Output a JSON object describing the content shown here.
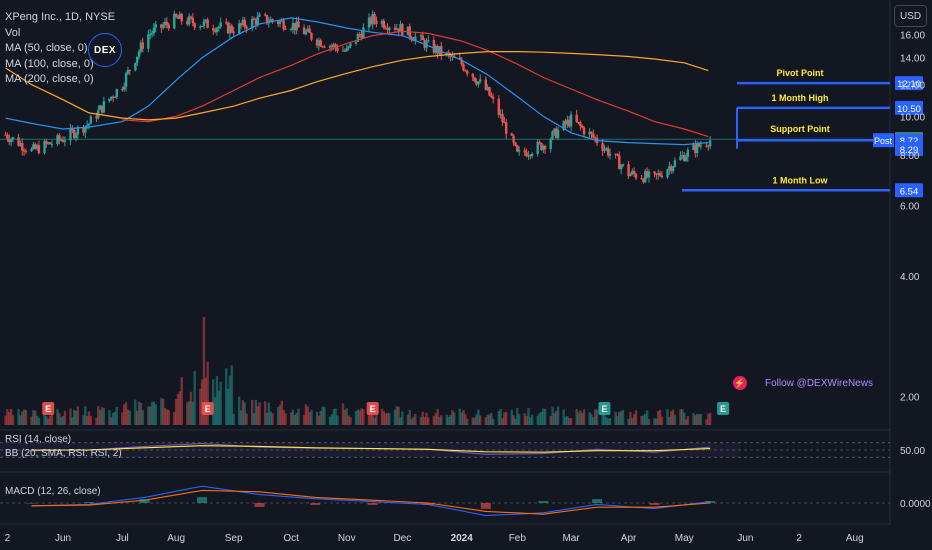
{
  "legend": {
    "symbol": "XPeng Inc., 1D, NYSE",
    "vol": "Vol",
    "ma50": "MA (50, close, 0)",
    "ma100": "MA (100, close, 0)",
    "ma200": "MA (200, close, 0)"
  },
  "currency_button": "USD",
  "watermark_logo": "DEX",
  "rsi_legend": "RSI (14, close)",
  "bb_legend": "BB (20, SMA, RSI: RSI, 2)",
  "macd_legend": "MACD (12, 26, close)",
  "follow_text": "Follow @DEXWireNews",
  "colors": {
    "background": "#131722",
    "up": "#26a69a",
    "down": "#ef5350",
    "ma50": "#2196f3",
    "ma100": "#e53935",
    "ma200": "#ffa726",
    "level_line": "#2962ff",
    "level_label": "#ffeb3b",
    "support_badge": "#4caf50",
    "rsi_line": "#7e57c2"
  },
  "chart_data": [
    {
      "type": "line",
      "title": "XPeng Inc., 1D, NYSE",
      "ylabel": "USD",
      "y_scale": "log",
      "y_ticks": [
        16.0,
        14.0,
        12.0,
        10.0,
        8.0,
        6.0,
        4.0,
        2.0
      ],
      "ylim": [
        1.7,
        19.5
      ],
      "x_ticks": [
        "2",
        "Jun",
        "Jul",
        "Aug",
        "Sep",
        "Oct",
        "Nov",
        "Dec",
        "2024",
        "Feb",
        "Mar",
        "Apr",
        "May",
        "Jun",
        "2",
        "Aug"
      ],
      "x": [
        "2023-05-01",
        "2023-05-15",
        "2023-06-01",
        "2023-06-15",
        "2023-07-03",
        "2023-07-17",
        "2023-08-01",
        "2023-08-15",
        "2023-09-01",
        "2023-09-15",
        "2023-10-02",
        "2023-10-16",
        "2023-11-01",
        "2023-11-15",
        "2023-12-01",
        "2023-12-15",
        "2024-01-02",
        "2024-01-16",
        "2024-02-01",
        "2024-02-15",
        "2024-03-01",
        "2024-03-15",
        "2024-04-01",
        "2024-04-15",
        "2024-05-01",
        "2024-05-14"
      ],
      "series": [
        {
          "name": "MA (50, close, 0)",
          "values": [
            9.9,
            9.6,
            9.3,
            9.4,
            9.7,
            10.6,
            12.3,
            14.0,
            15.8,
            17.0,
            17.6,
            17.2,
            16.6,
            16.2,
            15.9,
            15.0,
            13.8,
            12.7,
            11.2,
            10.0,
            9.1,
            8.7,
            8.6,
            8.55,
            8.5,
            8.6
          ]
        },
        {
          "name": "MA (100, close, 0)",
          "values": [
            null,
            null,
            null,
            null,
            9.8,
            9.7,
            10.0,
            10.6,
            11.6,
            12.5,
            13.4,
            14.3,
            15.2,
            15.9,
            16.3,
            16.1,
            15.4,
            14.6,
            13.5,
            12.5,
            11.7,
            11.0,
            10.3,
            9.7,
            9.3,
            8.9
          ]
        },
        {
          "name": "MA (200, close, 0)",
          "values": [
            13.2,
            12.0,
            11.0,
            10.2,
            9.9,
            9.8,
            9.9,
            10.2,
            10.6,
            11.1,
            11.6,
            12.2,
            12.8,
            13.3,
            13.8,
            14.1,
            14.35,
            14.5,
            14.5,
            14.45,
            14.35,
            14.25,
            14.1,
            13.9,
            13.6,
            13.0
          ]
        }
      ],
      "price_summary": {
        "first_close": 9.0,
        "high": 19.0,
        "low": 6.54,
        "last_close": 8.72
      },
      "levels": [
        {
          "label": "Pivot Point",
          "value": 12.1
        },
        {
          "label": "1 Month High",
          "value": 10.5
        },
        {
          "label": "Support Point",
          "value": 8.77
        },
        {
          "label": "Post",
          "value": 8.72
        },
        {
          "label": "",
          "value": 8.29
        },
        {
          "label": "1 Month Low",
          "value": 6.54
        }
      ],
      "earnings_markers": [
        "2023-05-24",
        "2023-08-18",
        "2023-11-15",
        "2024-03-19",
        "2024-05-22"
      ]
    },
    {
      "type": "bar",
      "title": "Vol",
      "note": "volume histogram; tallest bar mid-August 2023",
      "x": [
        "2023-05",
        "2023-06",
        "2023-07",
        "2023-08",
        "2023-09",
        "2023-10",
        "2023-11",
        "2023-12",
        "2024-01",
        "2024-02",
        "2024-03",
        "2024-04",
        "2024-05"
      ],
      "values": [
        12,
        14,
        20,
        46,
        22,
        16,
        14,
        12,
        12,
        14,
        12,
        12,
        10
      ]
    },
    {
      "type": "line",
      "title": "RSI (14, close)",
      "y_ticks": [
        50.0
      ],
      "ylim": [
        0,
        100
      ],
      "x": [
        "2023-05",
        "2023-06",
        "2023-07",
        "2023-08",
        "2023-09",
        "2023-10",
        "2023-11",
        "2023-12",
        "2024-01",
        "2024-02",
        "2024-03",
        "2024-04",
        "2024-05"
      ],
      "series": [
        {
          "name": "RSI (14, close)",
          "values": [
            48,
            50,
            60,
            68,
            58,
            55,
            54,
            52,
            38,
            40,
            52,
            44,
            58
          ]
        },
        {
          "name": "BB (20, SMA, RSI: RSI, 2)",
          "values": [
            50,
            50,
            56,
            62,
            60,
            56,
            54,
            52,
            45,
            44,
            48,
            48,
            54
          ]
        }
      ]
    },
    {
      "type": "line",
      "title": "MACD (12, 26, close)",
      "y_ticks": [
        0.0
      ],
      "x": [
        "2023-05",
        "2023-06",
        "2023-07",
        "2023-08",
        "2023-09",
        "2023-10",
        "2023-11",
        "2023-12",
        "2024-01",
        "2024-02",
        "2024-03",
        "2024-04",
        "2024-05"
      ],
      "series": [
        {
          "name": "MACD",
          "values": [
            -0.2,
            -0.1,
            0.4,
            1.2,
            0.6,
            0.3,
            0.1,
            -0.1,
            -0.9,
            -0.7,
            -0.1,
            -0.4,
            0.1
          ]
        },
        {
          "name": "Signal",
          "values": [
            -0.2,
            -0.15,
            0.2,
            0.9,
            0.8,
            0.4,
            0.2,
            0.0,
            -0.6,
            -0.8,
            -0.3,
            -0.3,
            0.0
          ]
        }
      ]
    }
  ]
}
